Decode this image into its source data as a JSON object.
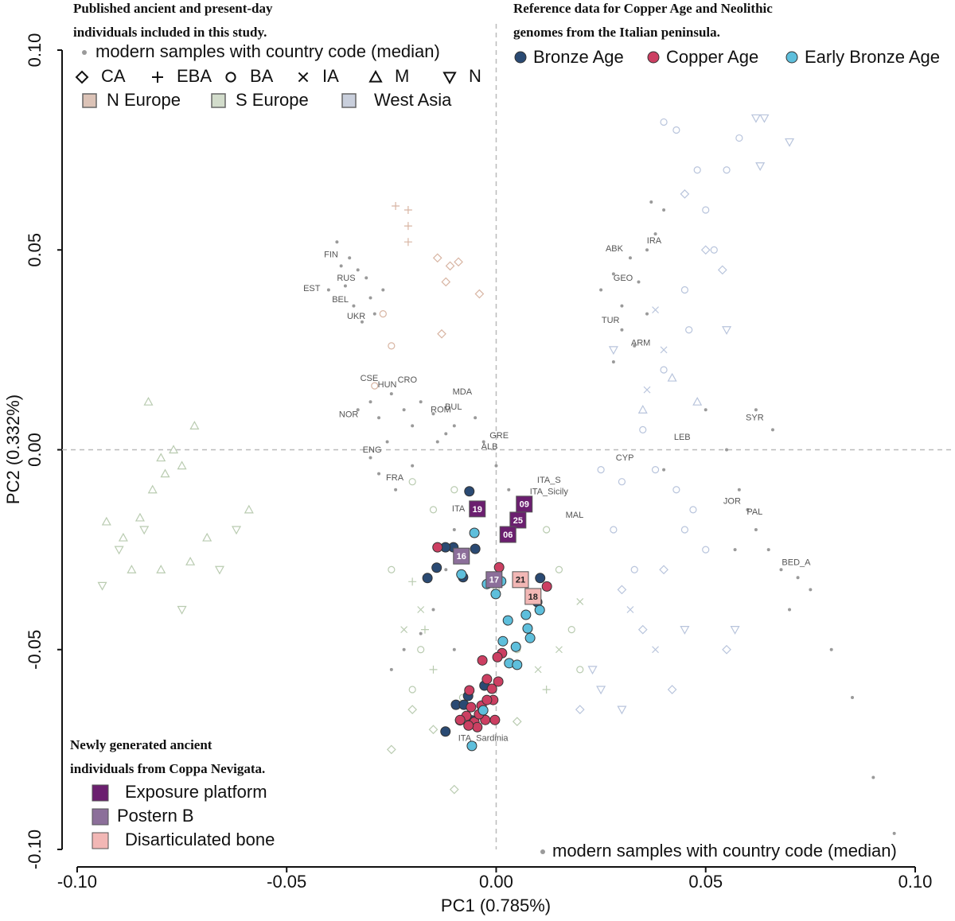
{
  "chart_data": {
    "type": "scatter",
    "xlabel": "PC1 (0.785%)",
    "ylabel": "PC2 (0.332%)",
    "xlim": [
      -0.1036,
      0.1076
    ],
    "ylim": [
      -0.1,
      0.1
    ],
    "xticks": [
      {
        "value": -0.1,
        "label": "-0.10"
      },
      {
        "value": -0.05,
        "label": "-0.05"
      },
      {
        "value": 0,
        "label": "0.00"
      },
      {
        "value": 0.05,
        "label": "0.05"
      },
      {
        "value": 0.1,
        "label": "0.10"
      }
    ],
    "yticks": [
      {
        "value": -0.1,
        "label": "-0.10"
      },
      {
        "value": -0.05,
        "label": "-0.05"
      },
      {
        "value": 0,
        "label": "0.00"
      },
      {
        "value": 0.05,
        "label": "0.05"
      },
      {
        "value": 0.1,
        "label": "0.10"
      }
    ],
    "zero_lines": true,
    "modern": {
      "color": "#9a9a9a",
      "x": [
        -0.038,
        -0.035,
        -0.033,
        -0.036,
        -0.031,
        -0.03,
        -0.034,
        -0.029,
        -0.032,
        -0.027,
        -0.04,
        -0.037,
        -0.033,
        -0.03,
        -0.028,
        -0.025,
        -0.022,
        -0.02,
        -0.018,
        -0.015,
        -0.012,
        -0.026,
        -0.03,
        -0.028,
        -0.024,
        -0.02,
        -0.014,
        -0.01,
        -0.005,
        -0.003,
        0.0,
        -0.01,
        -0.012,
        -0.015,
        -0.018,
        -0.022,
        -0.025,
        -0.01,
        0.003,
        0.006,
        0.025,
        0.028,
        0.03,
        0.032,
        0.034,
        0.036,
        0.038,
        0.03,
        0.033,
        0.036,
        0.04,
        0.037,
        0.028,
        0.05,
        0.055,
        0.058,
        0.06,
        0.062,
        0.065,
        0.068,
        0.072,
        0.075,
        0.057,
        0.07,
        0.08,
        0.085,
        0.09,
        0.095,
        0.062,
        0.066,
        0.04
      ],
      "y": [
        0.052,
        0.048,
        0.045,
        0.041,
        0.043,
        0.038,
        0.036,
        0.034,
        0.032,
        0.04,
        0.04,
        0.046,
        0.01,
        0.012,
        0.008,
        0.014,
        0.01,
        0.006,
        0.012,
        0.009,
        0.004,
        0.002,
        -0.002,
        -0.006,
        -0.01,
        -0.004,
        0.002,
        0.006,
        0.008,
        0.002,
        -0.004,
        -0.02,
        -0.03,
        -0.04,
        -0.046,
        -0.05,
        -0.055,
        -0.05,
        -0.01,
        -0.012,
        0.04,
        0.044,
        0.036,
        0.048,
        0.042,
        0.05,
        0.054,
        0.03,
        0.026,
        0.034,
        0.06,
        0.062,
        0.022,
        0.01,
        0.0,
        -0.01,
        -0.015,
        -0.02,
        -0.025,
        -0.03,
        -0.032,
        -0.035,
        -0.025,
        -0.04,
        -0.05,
        -0.062,
        -0.082,
        -0.096,
        0.01,
        0.005,
        -0.005
      ]
    },
    "ancient": [
      {
        "marker": "triangle",
        "color": "#b9cbb0",
        "x": [
          -0.093,
          -0.089,
          -0.085,
          -0.082,
          -0.079,
          -0.077,
          -0.08,
          -0.087,
          -0.073,
          -0.069,
          -0.075,
          -0.08,
          -0.072,
          -0.083,
          -0.059
        ],
        "y": [
          -0.018,
          -0.022,
          -0.017,
          -0.01,
          -0.006,
          0.0,
          -0.03,
          -0.03,
          -0.028,
          -0.022,
          -0.004,
          -0.002,
          0.006,
          0.012,
          -0.015
        ]
      },
      {
        "marker": "triangle-down",
        "color": "#b9cbb0",
        "x": [
          -0.094,
          -0.09,
          -0.084,
          -0.075,
          -0.062,
          -0.066
        ],
        "y": [
          -0.034,
          -0.025,
          -0.02,
          -0.04,
          -0.02,
          -0.03
        ]
      },
      {
        "marker": "circle",
        "color": "#b9cbb0",
        "x": [
          -0.01,
          -0.015,
          -0.005,
          0.0,
          0.01,
          0.015,
          0.012,
          -0.018,
          -0.02,
          -0.008,
          0.005,
          0.018,
          0.02,
          -0.025,
          -0.02
        ],
        "y": [
          -0.01,
          -0.015,
          -0.025,
          -0.035,
          -0.04,
          -0.03,
          -0.02,
          -0.05,
          -0.06,
          -0.062,
          -0.05,
          -0.045,
          -0.055,
          -0.03,
          -0.008
        ]
      },
      {
        "marker": "diamond",
        "color": "#b9cbb0",
        "x": [
          -0.02,
          -0.015,
          -0.025,
          -0.01,
          0.005
        ],
        "y": [
          -0.065,
          -0.07,
          -0.075,
          -0.085,
          -0.068
        ]
      },
      {
        "marker": "cross",
        "color": "#b9cbb0",
        "x": [
          -0.022,
          -0.018,
          0.01,
          0.015,
          0.02
        ],
        "y": [
          -0.045,
          -0.04,
          -0.055,
          -0.05,
          -0.038
        ]
      },
      {
        "marker": "plus",
        "color": "#b9cbb0",
        "x": [
          -0.02,
          -0.017,
          0.012,
          -0.015
        ],
        "y": [
          -0.033,
          -0.045,
          -0.06,
          -0.055
        ]
      },
      {
        "marker": "plus",
        "color": "#d8b5a3",
        "x": [
          -0.024,
          -0.021,
          -0.021,
          -0.021
        ],
        "y": [
          0.061,
          0.06,
          0.056,
          0.052
        ]
      },
      {
        "marker": "diamond",
        "color": "#d8b5a3",
        "x": [
          -0.014,
          -0.011,
          -0.009,
          -0.012,
          -0.004,
          -0.013
        ],
        "y": [
          0.048,
          0.046,
          0.047,
          0.042,
          0.039,
          0.029
        ]
      },
      {
        "marker": "circle",
        "color": "#d8b5a3",
        "x": [
          -0.027,
          -0.029,
          -0.025
        ],
        "y": [
          0.034,
          0.016,
          0.026
        ]
      },
      {
        "marker": "circle",
        "color": "#b8c4dc",
        "x": [
          0.04,
          0.043,
          0.048,
          0.05,
          0.052,
          0.045,
          0.046,
          0.04,
          0.035,
          0.038,
          0.043,
          0.047,
          0.05,
          0.03,
          0.028,
          0.025,
          0.033,
          0.045,
          0.055,
          0.058
        ],
        "y": [
          0.082,
          0.08,
          0.07,
          0.06,
          0.05,
          0.04,
          0.03,
          0.02,
          0.005,
          -0.005,
          -0.01,
          -0.015,
          -0.025,
          -0.008,
          -0.02,
          -0.005,
          -0.03,
          -0.02,
          0.07,
          0.078
        ]
      },
      {
        "marker": "diamond",
        "color": "#b8c4dc",
        "x": [
          0.045,
          0.05,
          0.054,
          0.035,
          0.03,
          0.055,
          0.042,
          0.04,
          0.02
        ],
        "y": [
          0.064,
          0.05,
          0.045,
          -0.045,
          -0.035,
          -0.05,
          -0.06,
          -0.03,
          -0.065
        ]
      },
      {
        "marker": "triangle-down",
        "color": "#b8c4dc",
        "x": [
          0.062,
          0.064,
          0.07,
          0.063,
          0.055,
          0.028,
          0.045,
          0.057,
          0.023,
          0.025,
          0.03
        ],
        "y": [
          0.083,
          0.083,
          0.077,
          0.071,
          0.03,
          0.025,
          -0.045,
          -0.045,
          -0.055,
          -0.06,
          -0.065
        ]
      },
      {
        "marker": "cross",
        "color": "#b8c4dc",
        "x": [
          0.038,
          0.04,
          0.036,
          0.032,
          0.038
        ],
        "y": [
          0.035,
          0.025,
          0.015,
          -0.04,
          -0.05
        ]
      },
      {
        "marker": "triangle",
        "color": "#b8c4dc",
        "x": [
          0.042,
          0.035,
          0.048
        ],
        "y": [
          0.018,
          0.01,
          0.012
        ]
      }
    ],
    "country_labels": [
      {
        "text": "FIN",
        "x": -0.0394,
        "y": 0.0487
      },
      {
        "text": "RUS",
        "x": -0.0358,
        "y": 0.0429
      },
      {
        "text": "EST",
        "x": -0.044,
        "y": 0.0403
      },
      {
        "text": "BEL",
        "x": -0.0372,
        "y": 0.0375
      },
      {
        "text": "UKR",
        "x": -0.0334,
        "y": 0.0333
      },
      {
        "text": "CSE",
        "x": -0.0303,
        "y": 0.0178
      },
      {
        "text": "HUN",
        "x": -0.026,
        "y": 0.0162
      },
      {
        "text": "CRO",
        "x": -0.0212,
        "y": 0.0174
      },
      {
        "text": "MDA",
        "x": -0.0081,
        "y": 0.0144
      },
      {
        "text": "BUL",
        "x": -0.0102,
        "y": 0.0106
      },
      {
        "text": "ROM",
        "x": -0.0132,
        "y": 0.0099
      },
      {
        "text": "NOR",
        "x": -0.0352,
        "y": 0.0087
      },
      {
        "text": "GRE",
        "x": 0.0007,
        "y": 0.0035
      },
      {
        "text": "ENG",
        "x": -0.0296,
        "y": -0.0001
      },
      {
        "text": "ALB",
        "x": -0.0016,
        "y": 0.0007
      },
      {
        "text": "FRA",
        "x": -0.0242,
        "y": -0.0071
      },
      {
        "text": "ITA_S",
        "x": 0.0126,
        "y": -0.0077
      },
      {
        "text": "ITA_Sicily",
        "x": 0.0126,
        "y": -0.0106
      },
      {
        "text": "ITA",
        "x": -0.009,
        "y": -0.0148
      },
      {
        "text": "MAL",
        "x": 0.0187,
        "y": -0.0164
      },
      {
        "text": "ITA_Sardinia",
        "x": -0.0031,
        "y": -0.0723
      },
      {
        "text": "ABK",
        "x": 0.0282,
        "y": 0.0502
      },
      {
        "text": "IRA",
        "x": 0.0377,
        "y": 0.0522
      },
      {
        "text": "GEO",
        "x": 0.0303,
        "y": 0.0429
      },
      {
        "text": "TUR",
        "x": 0.0273,
        "y": 0.0323
      },
      {
        "text": "ARM",
        "x": 0.0345,
        "y": 0.0266
      },
      {
        "text": "SYR",
        "x": 0.0617,
        "y": 0.0079
      },
      {
        "text": "LEB",
        "x": 0.0444,
        "y": 0.0031
      },
      {
        "text": "CYP",
        "x": 0.0307,
        "y": -0.0021
      },
      {
        "text": "JOR",
        "x": 0.0563,
        "y": -0.013
      },
      {
        "text": "PAL",
        "x": 0.0617,
        "y": -0.0156
      },
      {
        "text": "BED_A",
        "x": 0.0716,
        "y": -0.0283
      }
    ],
    "series": [
      {
        "name": "Bronze Age",
        "color": "#2a4a73",
        "x": [
          -0.0064,
          -0.0142,
          -0.0164,
          -0.0102,
          -0.0121,
          -0.0079,
          -0.005,
          0.0105,
          0.0098,
          -0.0028,
          -0.0096,
          -0.0077,
          -0.0086,
          -0.0121,
          -0.0058,
          -0.0067
        ],
        "y": [
          -0.0104,
          -0.0295,
          -0.0321,
          -0.0244,
          -0.0244,
          -0.0319,
          -0.0248,
          -0.0321,
          -0.0381,
          -0.059,
          -0.0638,
          -0.0638,
          -0.0677,
          -0.0705,
          -0.0677,
          -0.0616
        ]
      },
      {
        "name": "Copper Age",
        "color": "#cc3f62",
        "x": [
          -0.014,
          0.0007,
          0.0121,
          -0.0033,
          0.0014,
          0.0003,
          -0.0022,
          0.0005,
          -0.0064,
          -0.001,
          -0.0007,
          -0.0035,
          -0.006,
          -0.0071,
          -0.0086,
          -0.0052,
          -0.0045,
          -0.0026,
          -0.0003,
          -0.0022,
          -0.0041,
          -0.0066
        ],
        "y": [
          -0.0244,
          -0.0294,
          -0.0342,
          -0.0527,
          -0.0509,
          -0.0519,
          -0.0574,
          -0.058,
          -0.0602,
          -0.0598,
          -0.0626,
          -0.064,
          -0.0644,
          -0.0666,
          -0.0676,
          -0.0681,
          -0.0694,
          -0.0676,
          -0.0676,
          -0.0626,
          -0.0662,
          -0.069
        ]
      },
      {
        "name": "Early Bronze Age",
        "color": "#5ebfdc",
        "x": [
          -0.0052,
          -0.0077,
          -0.0083,
          -0.0022,
          -0.0001,
          0.0012,
          0.0028,
          0.0016,
          0.0031,
          0.0047,
          0.0075,
          0.0081,
          0.0071,
          0.0104,
          0.0081,
          -0.0031,
          -0.0058,
          0.005
        ],
        "y": [
          -0.0208,
          -0.0268,
          -0.0312,
          -0.0336,
          -0.0361,
          -0.0329,
          -0.0427,
          -0.0479,
          -0.0534,
          -0.0493,
          -0.0447,
          -0.0471,
          -0.0413,
          -0.0401,
          -0.0369,
          -0.0652,
          -0.0741,
          -0.0538
        ]
      }
    ],
    "coppa_series": [
      {
        "name": "Exposure platform",
        "color": "#6b1f6f",
        "label_color": "#ffffff",
        "x": [
          -0.0045,
          0.0067,
          0.0052,
          0.0028
        ],
        "y": [
          -0.0148,
          -0.0136,
          -0.0176,
          -0.0212
        ],
        "labels": [
          "19",
          "09",
          "25",
          "06"
        ]
      },
      {
        "name": "Postern B",
        "color": "#8c6f9a",
        "label_color": "#ffffff",
        "x": [
          -0.0083,
          -0.0005
        ],
        "y": [
          -0.0266,
          -0.0325
        ],
        "labels": [
          "16",
          "17"
        ]
      },
      {
        "name": "Disarticulated bone",
        "color": "#f2b7b5",
        "label_color": "#222222",
        "x": [
          0.0058,
          0.0088
        ],
        "y": [
          -0.0325,
          -0.0367
        ],
        "labels": [
          "21",
          "18"
        ]
      }
    ],
    "legend_published": {
      "title": [
        "Published ancient and present-day",
        "individuals included in this study."
      ],
      "modern_label": "modern samples with country code (median)",
      "markers": [
        {
          "name": "CA",
          "marker": "diamond"
        },
        {
          "name": "EBA",
          "marker": "plus"
        },
        {
          "name": "BA",
          "marker": "circle"
        },
        {
          "name": "IA",
          "marker": "cross"
        },
        {
          "name": "M",
          "marker": "triangle"
        },
        {
          "name": "N",
          "marker": "triangle-down"
        }
      ],
      "regions": [
        {
          "name": "N Europe",
          "color": "#dcc3b7"
        },
        {
          "name": "S Europe",
          "color": "#d2dccb"
        },
        {
          "name": "West Asia",
          "color": "#c9cfdc"
        }
      ]
    },
    "legend_reference": {
      "title": [
        "Reference data for Copper Age and Neolithic",
        "genomes from the Italian peninsula."
      ]
    },
    "legend_coppa": {
      "title": [
        "Newly generated ancient",
        "individuals from Coppa Nevigata."
      ]
    },
    "bottom_modern_label": "modern samples with country code (median)"
  }
}
